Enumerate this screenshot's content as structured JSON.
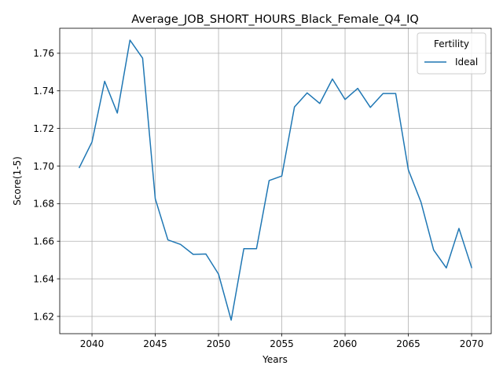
{
  "chart_data": {
    "type": "line",
    "title": "Average_JOB_SHORT_HOURS_Black_Female_Q4_IQ",
    "xlabel": "Years",
    "ylabel": "Score(1-5)",
    "xlim": [
      2037.45,
      2071.55
    ],
    "ylim": [
      1.6108,
      1.7733
    ],
    "xticks": [
      2040,
      2045,
      2050,
      2055,
      2060,
      2065,
      2070
    ],
    "yticks": [
      1.62,
      1.64,
      1.66,
      1.68,
      1.7,
      1.72,
      1.74,
      1.76
    ],
    "ytick_labels": [
      "1.62",
      "1.64",
      "1.66",
      "1.68",
      "1.70",
      "1.72",
      "1.74",
      "1.76"
    ],
    "grid": true,
    "legend": {
      "title": "Fertility",
      "position": "upper right"
    },
    "x": [
      2039,
      2040,
      2041,
      2042,
      2043,
      2044,
      2045,
      2046,
      2047,
      2048,
      2049,
      2050,
      2051,
      2052,
      2053,
      2054,
      2055,
      2056,
      2057,
      2058,
      2059,
      2060,
      2061,
      2062,
      2063,
      2064,
      2065,
      2066,
      2067,
      2068,
      2069,
      2070
    ],
    "series": [
      {
        "name": "Ideal",
        "color": "#1f77b4",
        "values": [
          1.6992,
          1.7128,
          1.7451,
          1.7282,
          1.767,
          1.7574,
          1.6826,
          1.6607,
          1.6583,
          1.653,
          1.6532,
          1.6425,
          1.618,
          1.656,
          1.656,
          1.6923,
          1.6947,
          1.7314,
          1.7389,
          1.7333,
          1.7463,
          1.7354,
          1.7413,
          1.7312,
          1.7386,
          1.7386,
          1.698,
          1.6808,
          1.6553,
          1.6458,
          1.6668,
          1.646
        ]
      }
    ]
  }
}
